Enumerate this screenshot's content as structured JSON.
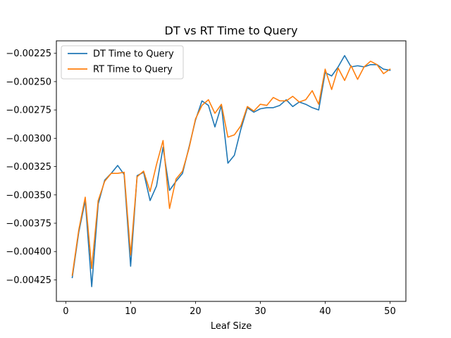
{
  "chart_data": {
    "type": "line",
    "title": "DT vs RT Time to Query",
    "xlabel": "Leaf Size",
    "ylabel": "",
    "xlim": [
      -1.45,
      52.45
    ],
    "ylim": [
      -0.00444,
      -0.00214
    ],
    "x_ticks": [
      0,
      10,
      20,
      30,
      40,
      50
    ],
    "x_tick_labels": [
      "0",
      "10",
      "20",
      "30",
      "40",
      "50"
    ],
    "y_ticks": [
      -0.00425,
      -0.004,
      -0.00375,
      -0.0035,
      -0.00325,
      -0.003,
      -0.00275,
      -0.0025,
      -0.00225
    ],
    "y_tick_labels": [
      "−0.00425",
      "−0.00400",
      "−0.00375",
      "−0.00350",
      "−0.00325",
      "−0.00300",
      "−0.00275",
      "−0.00250",
      "−0.00225"
    ],
    "grid": false,
    "legend": "top-left",
    "x": [
      1,
      2,
      3,
      4,
      5,
      6,
      7,
      8,
      9,
      10,
      11,
      12,
      13,
      14,
      15,
      16,
      17,
      18,
      19,
      20,
      21,
      22,
      23,
      24,
      25,
      26,
      27,
      28,
      29,
      30,
      31,
      32,
      33,
      34,
      35,
      36,
      37,
      38,
      39,
      40,
      41,
      42,
      43,
      44,
      45,
      46,
      47,
      48,
      49,
      50
    ],
    "series": [
      {
        "name": "DT Time to Query",
        "color": "#1f77b4",
        "values": [
          -0.00423,
          -0.00383,
          -0.00355,
          -0.00431,
          -0.00358,
          -0.00337,
          -0.00331,
          -0.00324,
          -0.00332,
          -0.00413,
          -0.00333,
          -0.0033,
          -0.00355,
          -0.00342,
          -0.00308,
          -0.00346,
          -0.00338,
          -0.00331,
          -0.00308,
          -0.00284,
          -0.00267,
          -0.00271,
          -0.0029,
          -0.00271,
          -0.00322,
          -0.00315,
          -0.00292,
          -0.00273,
          -0.00277,
          -0.00274,
          -0.00273,
          -0.00273,
          -0.00271,
          -0.00266,
          -0.00272,
          -0.00268,
          -0.0027,
          -0.00273,
          -0.00275,
          -0.00242,
          -0.00245,
          -0.00237,
          -0.00227,
          -0.00237,
          -0.00236,
          -0.00237,
          -0.00235,
          -0.00235,
          -0.00239,
          -0.0024
        ]
      },
      {
        "name": "RT Time to Query",
        "color": "#ff7f0e",
        "values": [
          -0.00421,
          -0.00381,
          -0.00352,
          -0.00415,
          -0.00355,
          -0.00338,
          -0.00331,
          -0.00331,
          -0.0033,
          -0.00403,
          -0.00334,
          -0.00329,
          -0.00347,
          -0.00323,
          -0.00302,
          -0.00362,
          -0.00336,
          -0.00329,
          -0.00309,
          -0.00283,
          -0.00271,
          -0.00266,
          -0.00278,
          -0.0027,
          -0.00299,
          -0.00297,
          -0.00289,
          -0.00272,
          -0.00276,
          -0.0027,
          -0.00271,
          -0.00264,
          -0.00267,
          -0.00267,
          -0.00263,
          -0.00268,
          -0.00266,
          -0.00258,
          -0.0027,
          -0.00239,
          -0.00257,
          -0.00238,
          -0.00249,
          -0.00236,
          -0.00248,
          -0.00237,
          -0.00232,
          -0.00235,
          -0.00243,
          -0.00239
        ]
      }
    ]
  }
}
